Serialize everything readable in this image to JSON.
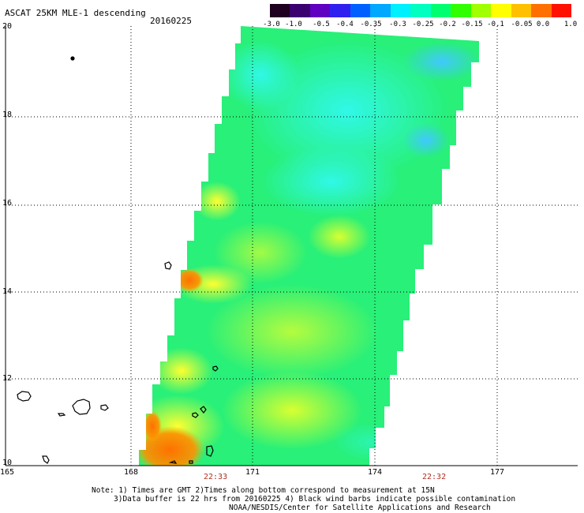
{
  "header": {
    "title": "ASCAT 25KM MLE-1 descending",
    "date": "20160225"
  },
  "colorbar": {
    "labels": [
      "-3.0",
      "-1.0",
      "-0.5",
      "-0.4",
      "-0.35",
      "-0.3",
      "-0.25",
      "-0.2",
      "-0.15",
      "-0.1",
      "-0.05",
      "0.0",
      "1.0"
    ],
    "colors": [
      "#200020",
      "#3a0070",
      "#6000c0",
      "#3020f0",
      "#0060ff",
      "#00a8ff",
      "#00f0ff",
      "#00ffc0",
      "#00ff70",
      "#30ff00",
      "#a0ff00",
      "#ffff00",
      "#ffc000",
      "#ff7000",
      "#ff1000"
    ]
  },
  "map": {
    "lat_labels": [
      "20",
      "18",
      "16",
      "14",
      "12",
      "10"
    ],
    "lon_labels": [
      "165",
      "168",
      "171",
      "174",
      "177"
    ],
    "swath_colors": {
      "background": "#28f078",
      "cyan": "#40ffd0",
      "light_cyan": "#30f8e8",
      "blue_green": "#40c8ff",
      "yellow_green": "#d8ff30",
      "yellow": "#ffff30",
      "orange": "#ff8000",
      "dark_orange": "#ff6000"
    },
    "pass_times": [
      "22:33",
      "22:32"
    ]
  },
  "notes": {
    "line1": "Note: 1) Times are GMT 2)Times along bottom correspond to measurement at 15N",
    "line2": "3)Data buffer is 22 hrs from 20160225 4) Black wind barbs indicate possible contamination",
    "line3": "NOAA/NESDIS/Center for Satellite Applications and Research"
  }
}
